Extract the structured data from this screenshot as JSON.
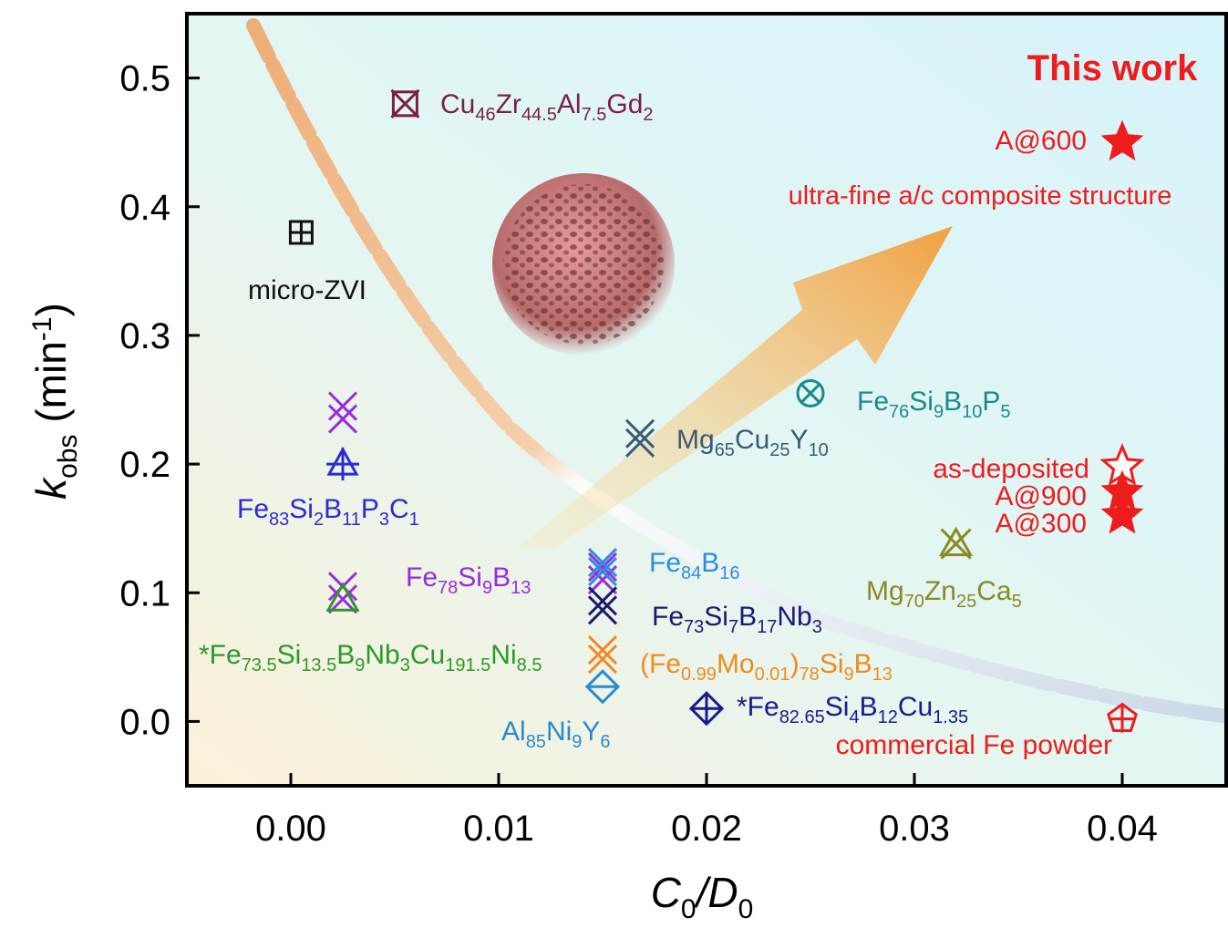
{
  "chart_data": {
    "type": "scatter",
    "xlabel": [
      "C",
      "0",
      "/D",
      "0"
    ],
    "ylabel": [
      "k",
      "obs",
      " (min",
      "-1",
      ")"
    ],
    "xlim": [
      -0.005,
      0.045
    ],
    "ylim": [
      -0.05,
      0.55
    ],
    "xticks": [
      {
        "value": 0,
        "label": "0.00"
      },
      0.01,
      0.02,
      0.03,
      0.04
    ],
    "yticks": [
      {
        "value": 0,
        "label": "0.0"
      },
      0.1,
      0.2,
      0.3,
      0.4,
      0.5
    ],
    "annotations": [
      "This work",
      "ultra-fine a/c composite structure"
    ],
    "series": [
      {
        "name": "Cu46Zr44.5Al7.5Gd2",
        "color": "#7a1f45",
        "marker": "xsquare",
        "x": [
          0.0055
        ],
        "values": [
          0.48
        ]
      },
      {
        "name": "micro-ZVI",
        "color": "#111111",
        "marker": "square-plus",
        "x": [
          0.0005
        ],
        "values": [
          0.38
        ]
      },
      {
        "name": "Fe83Si2B11P3C1",
        "color": "#2b2bd4",
        "marker": "triangle-plus",
        "x": [
          0.0025
        ],
        "values": [
          0.2
        ]
      },
      {
        "name": "Fe78Si9B13",
        "color": "#9a2be0",
        "marker": "xx",
        "x": [
          0.0025,
          0.0025,
          0.015
        ],
        "values": [
          0.24,
          0.1,
          0.115
        ]
      },
      {
        "name": "*Fe73.5Si13.5B9Nb3Cu191.5Ni8.5",
        "color": "#2a9a2a",
        "marker": "triangle",
        "x": [
          0.0025
        ],
        "values": [
          0.095
        ]
      },
      {
        "name": "Fe84B16",
        "color": "#2a8ee0",
        "marker": "x",
        "x": [
          0.015
        ],
        "values": [
          0.12
        ]
      },
      {
        "name": "Fe73Si7B17Nb3",
        "color": "#1a1a70",
        "marker": "x",
        "x": [
          0.015
        ],
        "values": [
          0.09
        ]
      },
      {
        "name": "(Fe0.99Mo0.01)78Si9B13",
        "color": "#f08a20",
        "marker": "x",
        "x": [
          0.015
        ],
        "values": [
          0.052
        ]
      },
      {
        "name": "Al85Ni9Y6",
        "color": "#2a8ad0",
        "marker": "diamond",
        "x": [
          0.015
        ],
        "values": [
          0.027
        ]
      },
      {
        "name": "*Fe82.65Si4B12Cu1.35",
        "color": "#1a1a90",
        "marker": "diamond-plus",
        "x": [
          0.02
        ],
        "values": [
          0.01
        ]
      },
      {
        "name": "Mg65Cu25Y10",
        "color": "#3a5a78",
        "marker": "x",
        "x": [
          0.0168
        ],
        "values": [
          0.22
        ]
      },
      {
        "name": "Fe76Si9B10P5",
        "color": "#1a8a8a",
        "marker": "circle-x",
        "x": [
          0.025
        ],
        "values": [
          0.255
        ]
      },
      {
        "name": "Mg70Zn25Ca5",
        "color": "#8a8a20",
        "marker": "triangle-x",
        "x": [
          0.032
        ],
        "values": [
          0.138
        ]
      },
      {
        "name": "as-deposited",
        "color": "#ee1c1c",
        "marker": "star-open",
        "x": [
          0.04
        ],
        "values": [
          0.198
        ]
      },
      {
        "name": "A@900",
        "color": "#ee1c1c",
        "marker": "star",
        "x": [
          0.04
        ],
        "values": [
          0.178
        ]
      },
      {
        "name": "A@300",
        "color": "#ee1c1c",
        "marker": "star",
        "x": [
          0.04
        ],
        "values": [
          0.16
        ]
      },
      {
        "name": "A@600",
        "color": "#ee1c1c",
        "marker": "star",
        "x": [
          0.04
        ],
        "values": [
          0.45
        ]
      },
      {
        "name": "commercial Fe powder",
        "color": "#ee1c1c",
        "marker": "pentagon-plus",
        "x": [
          0.04
        ],
        "values": [
          0.002
        ]
      }
    ]
  }
}
